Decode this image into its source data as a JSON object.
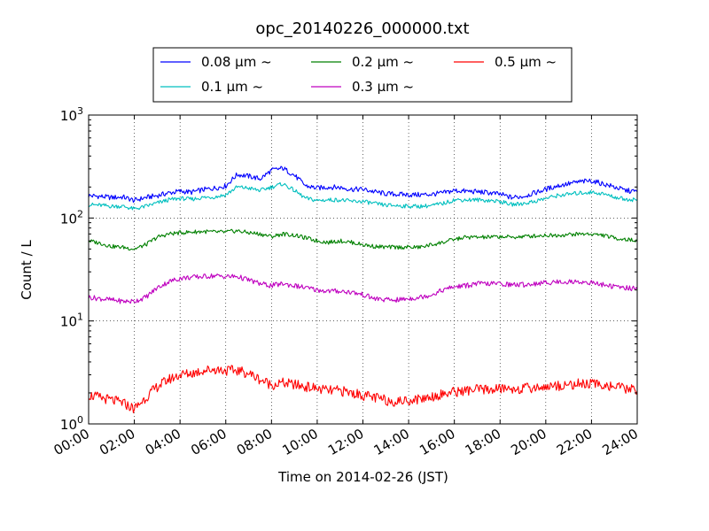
{
  "chart_data": {
    "type": "line",
    "title": "opc_20140226_000000.txt",
    "xlabel": "Time on 2014-02-26 (JST)",
    "ylabel": "Count / L",
    "x_unit": "hour",
    "xlim": [
      0,
      24
    ],
    "ylim": [
      1,
      1000
    ],
    "yscale": "log",
    "grid": true,
    "legend_position": "top",
    "x_ticks": [
      {
        "value": 0,
        "label": "00:00"
      },
      {
        "value": 2,
        "label": "02:00"
      },
      {
        "value": 4,
        "label": "04:00"
      },
      {
        "value": 6,
        "label": "06:00"
      },
      {
        "value": 8,
        "label": "08:00"
      },
      {
        "value": 10,
        "label": "10:00"
      },
      {
        "value": 12,
        "label": "12:00"
      },
      {
        "value": 14,
        "label": "14:00"
      },
      {
        "value": 16,
        "label": "16:00"
      },
      {
        "value": 18,
        "label": "18:00"
      },
      {
        "value": 20,
        "label": "20:00"
      },
      {
        "value": 22,
        "label": "22:00"
      },
      {
        "value": 24,
        "label": "24:00"
      }
    ],
    "y_ticks": [
      {
        "value": 1,
        "base": "10",
        "exp": "0"
      },
      {
        "value": 10,
        "base": "10",
        "exp": "1"
      },
      {
        "value": 100,
        "base": "10",
        "exp": "2"
      },
      {
        "value": 1000,
        "base": "10",
        "exp": "3"
      }
    ],
    "series": [
      {
        "name": "0.08 μm ~",
        "color": "#0000ff",
        "x": [
          0,
          0.5,
          1,
          1.5,
          2,
          2.5,
          3,
          3.5,
          4,
          4.5,
          5,
          5.5,
          6,
          6.5,
          7,
          7.5,
          8,
          8.5,
          9,
          9.5,
          10,
          10.5,
          11,
          11.5,
          12,
          12.5,
          13,
          13.5,
          14,
          14.5,
          15,
          15.5,
          16,
          16.5,
          17,
          17.5,
          18,
          18.5,
          19,
          19.5,
          20,
          20.5,
          21,
          21.5,
          22,
          22.5,
          23,
          23.5,
          24
        ],
        "values": [
          165,
          162,
          158,
          160,
          148,
          158,
          165,
          175,
          182,
          178,
          188,
          195,
          205,
          265,
          255,
          240,
          290,
          305,
          260,
          205,
          195,
          200,
          198,
          190,
          190,
          180,
          172,
          170,
          168,
          168,
          170,
          175,
          185,
          182,
          180,
          176,
          170,
          158,
          162,
          175,
          190,
          205,
          215,
          225,
          230,
          215,
          200,
          185,
          180
        ]
      },
      {
        "name": "0.1 μm ~",
        "color": "#00bfbf",
        "x": [
          0,
          0.5,
          1,
          1.5,
          2,
          2.5,
          3,
          3.5,
          4,
          4.5,
          5,
          5.5,
          6,
          6.5,
          7,
          7.5,
          8,
          8.5,
          9,
          9.5,
          10,
          10.5,
          11,
          11.5,
          12,
          12.5,
          13,
          13.5,
          14,
          14.5,
          15,
          15.5,
          16,
          16.5,
          17,
          17.5,
          18,
          18.5,
          19,
          19.5,
          20,
          20.5,
          21,
          21.5,
          22,
          22.5,
          23,
          23.5,
          24
        ],
        "values": [
          135,
          133,
          130,
          130,
          122,
          130,
          140,
          150,
          155,
          152,
          158,
          160,
          168,
          200,
          195,
          185,
          200,
          215,
          185,
          155,
          148,
          150,
          150,
          145,
          145,
          138,
          133,
          132,
          130,
          130,
          132,
          138,
          150,
          150,
          150,
          148,
          145,
          135,
          138,
          145,
          155,
          165,
          170,
          175,
          178,
          172,
          160,
          152,
          150
        ]
      },
      {
        "name": "0.2 μm ~",
        "color": "#008000",
        "x": [
          0,
          0.5,
          1,
          1.5,
          2,
          2.5,
          3,
          3.5,
          4,
          4.5,
          5,
          5.5,
          6,
          6.5,
          7,
          7.5,
          8,
          8.5,
          9,
          9.5,
          10,
          10.5,
          11,
          11.5,
          12,
          12.5,
          13,
          13.5,
          14,
          14.5,
          15,
          15.5,
          16,
          16.5,
          17,
          17.5,
          18,
          18.5,
          19,
          19.5,
          20,
          20.5,
          21,
          21.5,
          22,
          22.5,
          23,
          23.5,
          24
        ],
        "values": [
          60,
          57,
          53,
          52,
          50,
          55,
          65,
          70,
          72,
          73,
          74,
          73,
          73,
          75,
          72,
          70,
          66,
          70,
          68,
          64,
          60,
          58,
          60,
          58,
          55,
          53,
          52,
          52,
          52,
          52,
          55,
          58,
          62,
          65,
          65,
          65,
          66,
          65,
          66,
          67,
          68,
          68,
          69,
          70,
          70,
          68,
          64,
          62,
          60
        ]
      },
      {
        "name": "0.3 μm ~",
        "color": "#bf00bf",
        "x": [
          0,
          0.5,
          1,
          1.5,
          2,
          2.5,
          3,
          3.5,
          4,
          4.5,
          5,
          5.5,
          6,
          6.5,
          7,
          7.5,
          8,
          8.5,
          9,
          9.5,
          10,
          10.5,
          11,
          11.5,
          12,
          12.5,
          13,
          13.5,
          14,
          14.5,
          15,
          15.5,
          16,
          16.5,
          17,
          17.5,
          18,
          18.5,
          19,
          19.5,
          20,
          20.5,
          21,
          21.5,
          22,
          22.5,
          23,
          23.5,
          24
        ],
        "values": [
          17,
          16.5,
          16,
          15.5,
          15.5,
          17,
          21,
          24,
          26,
          26.5,
          27,
          27.5,
          27,
          27,
          25,
          23,
          22,
          23,
          22,
          21,
          20,
          19.5,
          19.5,
          19,
          18,
          16.5,
          16,
          16,
          16.5,
          17,
          18,
          20,
          21.5,
          22,
          23,
          23,
          23,
          22.5,
          22.5,
          23,
          23.5,
          24,
          24,
          24,
          23.5,
          22.5,
          21.5,
          21,
          20.5
        ]
      },
      {
        "name": "0.5 μm ~",
        "color": "#ff0000",
        "x": [
          0,
          0.5,
          1,
          1.5,
          2,
          2.5,
          3,
          3.5,
          4,
          4.5,
          5,
          5.5,
          6,
          6.5,
          7,
          7.5,
          8,
          8.5,
          9,
          9.5,
          10,
          10.5,
          11,
          11.5,
          12,
          12.5,
          13,
          13.5,
          14,
          14.5,
          15,
          15.5,
          16,
          16.5,
          17,
          17.5,
          18,
          18.5,
          19,
          19.5,
          20,
          20.5,
          21,
          21.5,
          22,
          22.5,
          23,
          23.5,
          24
        ],
        "values": [
          1.9,
          1.8,
          1.7,
          1.6,
          1.4,
          1.8,
          2.3,
          2.7,
          3.0,
          3.1,
          3.3,
          3.4,
          3.3,
          3.3,
          3.1,
          2.7,
          2.4,
          2.5,
          2.4,
          2.3,
          2.2,
          2.1,
          2.1,
          2.0,
          1.9,
          1.8,
          1.7,
          1.65,
          1.7,
          1.75,
          1.85,
          1.95,
          2.05,
          2.1,
          2.15,
          2.15,
          2.2,
          2.2,
          2.2,
          2.25,
          2.3,
          2.35,
          2.4,
          2.45,
          2.45,
          2.4,
          2.3,
          2.2,
          2.1
        ]
      }
    ]
  }
}
